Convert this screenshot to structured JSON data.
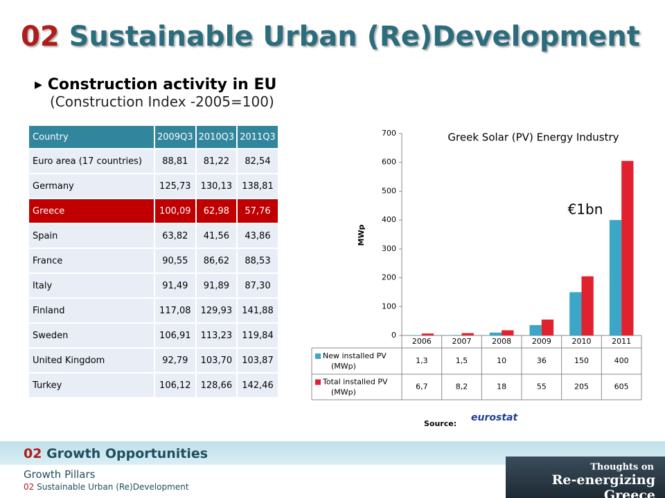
{
  "header": {
    "number": "02",
    "title": "Sustainable Urban (Re)Development"
  },
  "bullet": {
    "heading": "Construction activity in EU",
    "subheading": "(Construction Index -2005=100)"
  },
  "table": {
    "header": [
      "Country",
      "2009Q3",
      "2010Q3",
      "2011Q3"
    ],
    "rows": [
      [
        "Euro area (17 countries)",
        "88,81",
        "81,22",
        "82,54"
      ],
      [
        "Germany",
        "125,73",
        "130,13",
        "138,81"
      ],
      [
        "Greece",
        "100,09",
        "62,98",
        "57,76"
      ],
      [
        "Spain",
        "63,82",
        "41,56",
        "43,86"
      ],
      [
        "France",
        "90,55",
        "86,62",
        "88,53"
      ],
      [
        "Italy",
        "91,49",
        "91,89",
        "87,30"
      ],
      [
        "Finland",
        "117,08",
        "129,93",
        "141,88"
      ],
      [
        "Sweden",
        "106,91",
        "113,23",
        "119,84"
      ],
      [
        "United Kingdom",
        "92,79",
        "103,70",
        "103,87"
      ],
      [
        "Turkey",
        "106,12",
        "128,66",
        "142,46"
      ]
    ]
  },
  "chart_data": {
    "type": "bar",
    "title": "Greek Solar (PV) Energy Industry",
    "ylabel": "MWp",
    "annotation": "€1bn",
    "categories": [
      "2006",
      "2007",
      "2008",
      "2009",
      "2010",
      "2011"
    ],
    "series": [
      {
        "name": "New installed PV (MWp)",
        "color": "#3ba6c6",
        "values": [
          1.3,
          1.5,
          10,
          36,
          150,
          400
        ],
        "value_labels": [
          "1,3",
          "1,5",
          "10",
          "36",
          "150",
          "400"
        ]
      },
      {
        "name": "Total installed PV (MWp)",
        "color": "#e1212e",
        "values": [
          6.7,
          8.2,
          18,
          55,
          205,
          605
        ],
        "value_labels": [
          "6,7",
          "8,2",
          "18",
          "55",
          "205",
          "605"
        ]
      }
    ],
    "ylim": [
      0,
      700
    ],
    "yticks": [
      0,
      100,
      200,
      300,
      400,
      500,
      600,
      700
    ],
    "grid": false
  },
  "source": {
    "label": "Source:",
    "logo": "eurostat"
  },
  "footer": {
    "number": "02",
    "section": "Growth Opportunities",
    "pillar": "Growth Pillars",
    "sub_number": "02",
    "sub_title": "Sustainable Urban (Re)Development"
  },
  "logo": {
    "line1": "Thoughts on",
    "line2": "Re-energizing Greece"
  }
}
